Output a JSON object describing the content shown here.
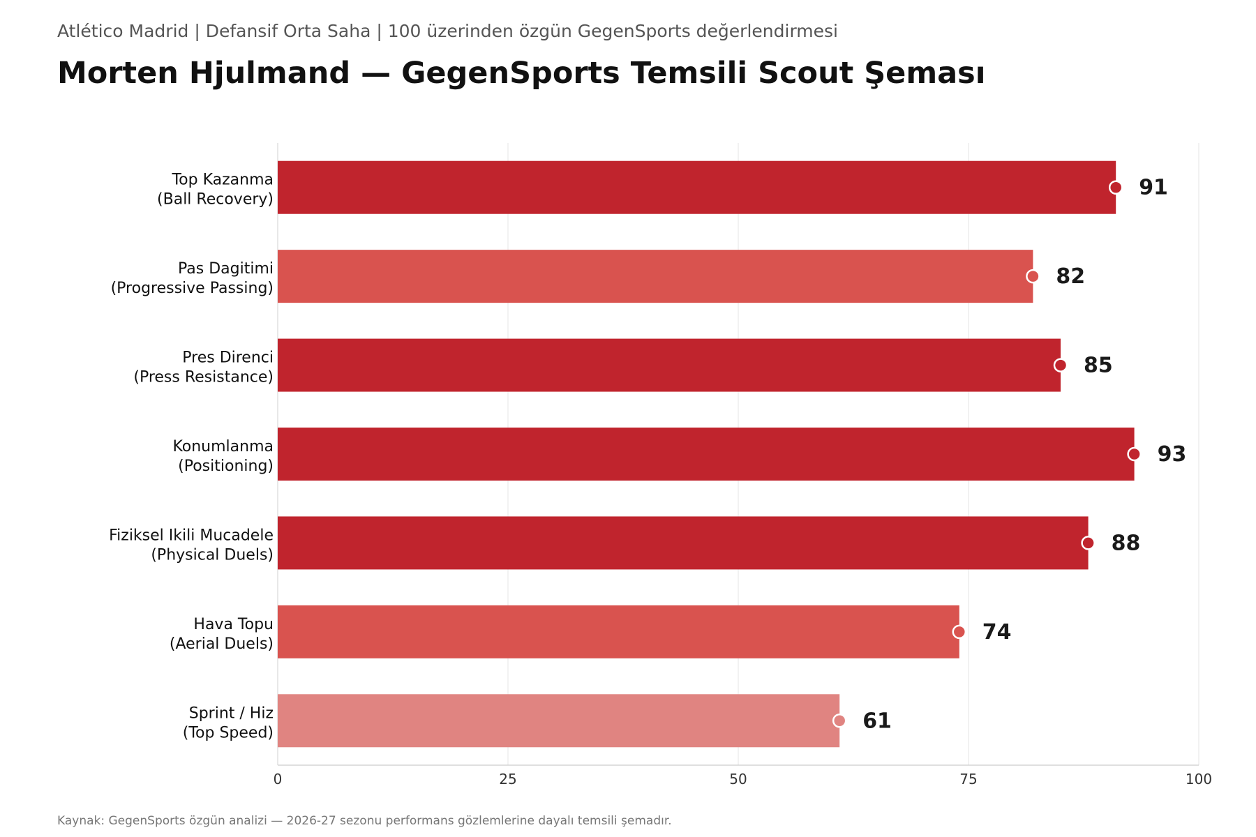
{
  "header": {
    "subtitle": "Atlético Madrid  |  Defansif Orta Saha  |  100 üzerinden özgün GegenSports değerlendirmesi",
    "title": "Morten Hjulmand — GegenSports Temsili Scout Şeması"
  },
  "footer": {
    "source": "Kaynak: GegenSports özgün analizi — 2026-27 sezonu performans gözlemlerine dayalı temsili şemadır."
  },
  "chart_data": {
    "type": "bar",
    "orientation": "horizontal",
    "categories": [
      [
        "Top Kazanma",
        "(Ball Recovery)"
      ],
      [
        "Pas Dagitimi",
        "(Progressive Passing)"
      ],
      [
        "Pres Direnci",
        "(Press Resistance)"
      ],
      [
        "Konumlanma",
        "(Positioning)"
      ],
      [
        "Fiziksel Ikili Mucadele",
        "(Physical Duels)"
      ],
      [
        "Hava Topu",
        "(Aerial Duels)"
      ],
      [
        "Sprint / Hiz",
        "(Top Speed)"
      ]
    ],
    "values": [
      91,
      82,
      85,
      93,
      88,
      74,
      61
    ],
    "bar_colors": [
      "#c0242d",
      "#d9534f",
      "#c0242d",
      "#c0242d",
      "#c0242d",
      "#d9534f",
      "#e08481"
    ],
    "xlim": [
      0,
      100
    ],
    "xticks": [
      0,
      25,
      50,
      75,
      100
    ],
    "grid": "vertical",
    "legend": "none",
    "xlabel": "",
    "ylabel": ""
  }
}
